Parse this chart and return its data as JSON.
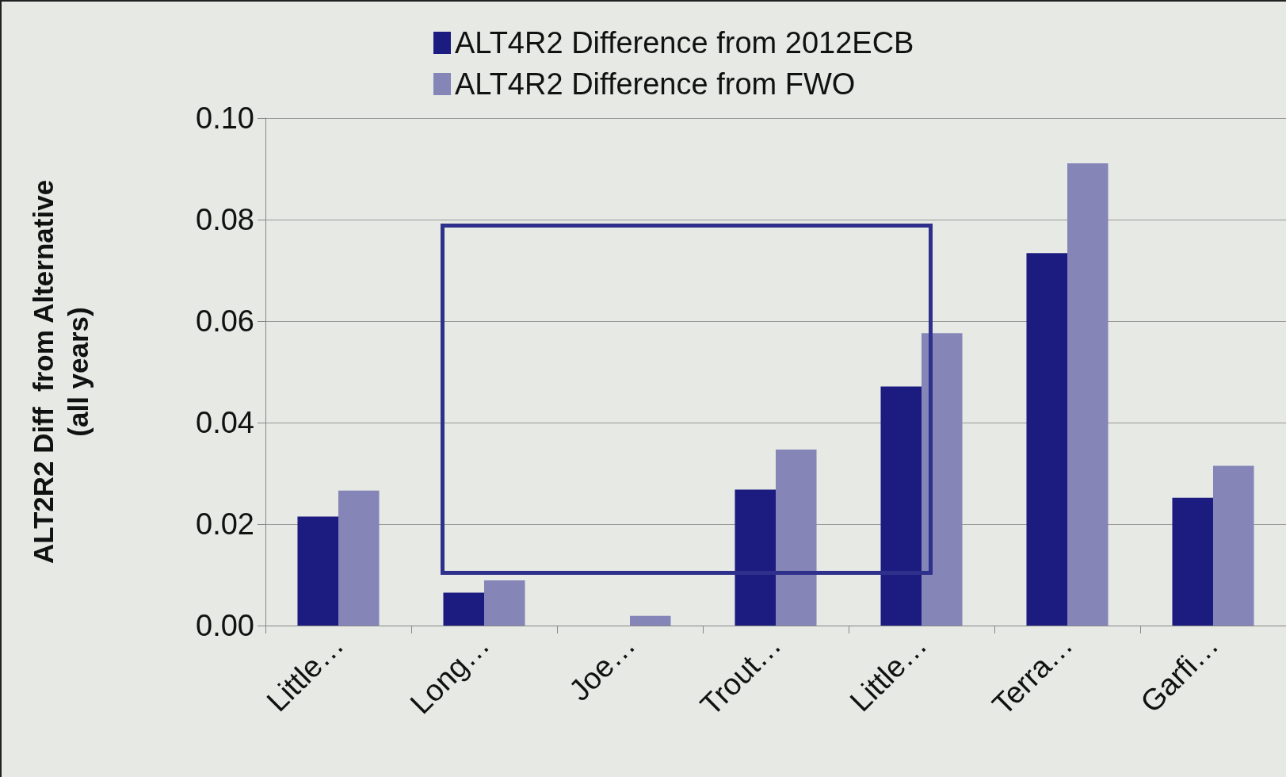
{
  "chart_data": {
    "type": "bar",
    "ylabel": "ALT2R2 Diff  from Alternative\n(all years)",
    "categories": [
      "Little…",
      "Long…",
      "Joe…",
      "Trout…",
      "Little…",
      "Terra…",
      "Garfi…"
    ],
    "series": [
      {
        "name": "ALT4R2 Difference from 2012ECB",
        "color": "#1c1c80",
        "values": [
          0.0215,
          0.0065,
          0,
          0.0268,
          0.0471,
          0.0734,
          0.0252
        ]
      },
      {
        "name": "ALT4R2 Difference from FWO",
        "color": "#8585b8",
        "values": [
          0.0266,
          0.0089,
          0.0019,
          0.0347,
          0.0576,
          0.0911,
          0.0315
        ]
      }
    ],
    "ylim": [
      0,
      0.1
    ],
    "yticks": [
      {
        "value": 0,
        "label": "0.00"
      },
      {
        "value": 0.02,
        "label": "0.02"
      },
      {
        "value": 0.04,
        "label": "0.04"
      },
      {
        "value": 0.06,
        "label": "0.06"
      },
      {
        "value": 0.08,
        "label": "0.08"
      },
      {
        "value": 0.1,
        "label": "0.10"
      }
    ],
    "grid": "y",
    "legend": "top"
  }
}
